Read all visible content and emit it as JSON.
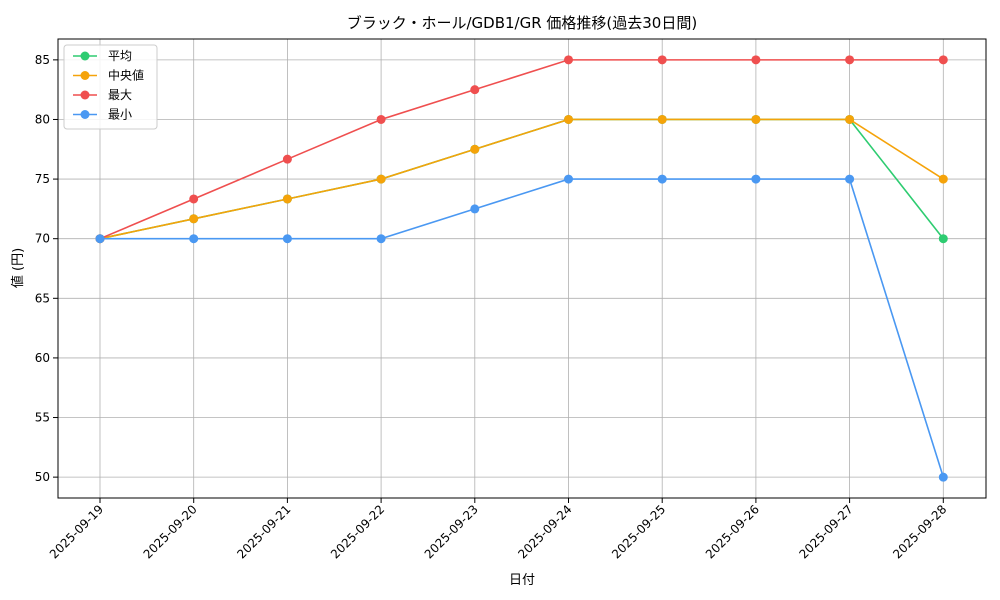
{
  "chart_data": {
    "type": "line",
    "title": "ブラック・ホール/GDB1/GR 価格推移(過去30日間)",
    "xlabel": "日付",
    "ylabel": "値 (円)",
    "categories": [
      "2025-09-19",
      "2025-09-20",
      "2025-09-21",
      "2025-09-22",
      "2025-09-23",
      "2025-09-24",
      "2025-09-25",
      "2025-09-26",
      "2025-09-27",
      "2025-09-28"
    ],
    "yticks": [
      50,
      55,
      60,
      65,
      70,
      75,
      80,
      85
    ],
    "ylim": [
      48.25,
      86.75
    ],
    "grid": true,
    "legend_position": "top-left",
    "series": [
      {
        "name": "平均",
        "color": "#2ecc71",
        "values": [
          70,
          71.67,
          73.33,
          75,
          77.5,
          80,
          80,
          80,
          80,
          70
        ]
      },
      {
        "name": "中央値",
        "color": "#f5a30a",
        "values": [
          70,
          71.67,
          73.33,
          75,
          77.5,
          80,
          80,
          80,
          80,
          75
        ]
      },
      {
        "name": "最大",
        "color": "#ef4f4f",
        "values": [
          70,
          73.33,
          76.67,
          80,
          82.5,
          85,
          85,
          85,
          85,
          85
        ]
      },
      {
        "name": "最小",
        "color": "#4a98f2",
        "values": [
          70,
          70,
          70,
          70,
          72.5,
          75,
          75,
          75,
          75,
          50
        ]
      }
    ]
  }
}
